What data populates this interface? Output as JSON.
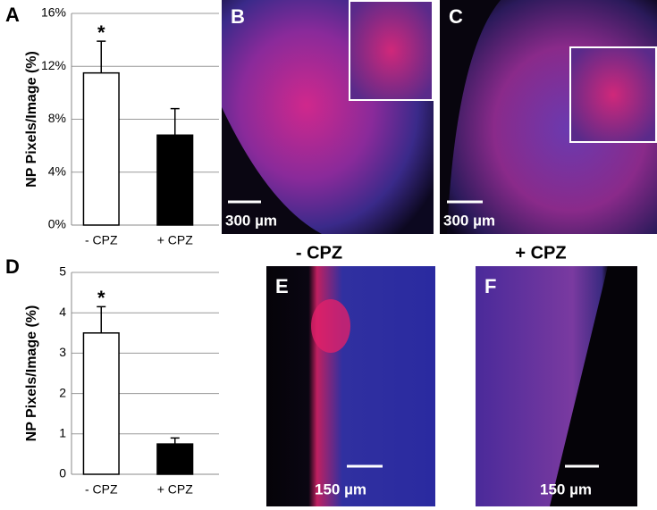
{
  "chart_data": [
    {
      "type": "bar",
      "label": "A",
      "ylabel": "NP Pixels/Image  (%)",
      "categories": [
        "- CPZ",
        "+ CPZ"
      ],
      "values": [
        11.5,
        6.8
      ],
      "errors": [
        2.4,
        2.0
      ],
      "colors": [
        "#ffffff",
        "#000000"
      ],
      "significance": [
        "*",
        null
      ],
      "ylim": [
        0,
        16
      ],
      "yticks": [
        {
          "value": 0,
          "label": "0%"
        },
        {
          "value": 4,
          "label": "4%"
        },
        {
          "value": 8,
          "label": "8%"
        },
        {
          "value": 12,
          "label": "12%"
        },
        {
          "value": 16,
          "label": "16%"
        }
      ],
      "grid": true
    },
    {
      "type": "bar",
      "label": "D",
      "ylabel": "NP Pixels/Image  (%)",
      "categories": [
        "- CPZ",
        "+ CPZ"
      ],
      "values": [
        3.5,
        0.75
      ],
      "errors": [
        0.65,
        0.15
      ],
      "colors": [
        "#ffffff",
        "#000000"
      ],
      "significance": [
        "*",
        null
      ],
      "ylim": [
        0,
        5
      ],
      "yticks": [
        0,
        1,
        2,
        3,
        4,
        5
      ],
      "grid": true
    }
  ],
  "images": [
    {
      "label": "B",
      "scale_bar": "300 µm"
    },
    {
      "label": "C",
      "scale_bar": "300 µm"
    },
    {
      "label": "E",
      "scale_bar": "150 µm"
    },
    {
      "label": "F",
      "scale_bar": "150 µm"
    }
  ],
  "image_captions": [
    "- CPZ",
    "+ CPZ"
  ]
}
